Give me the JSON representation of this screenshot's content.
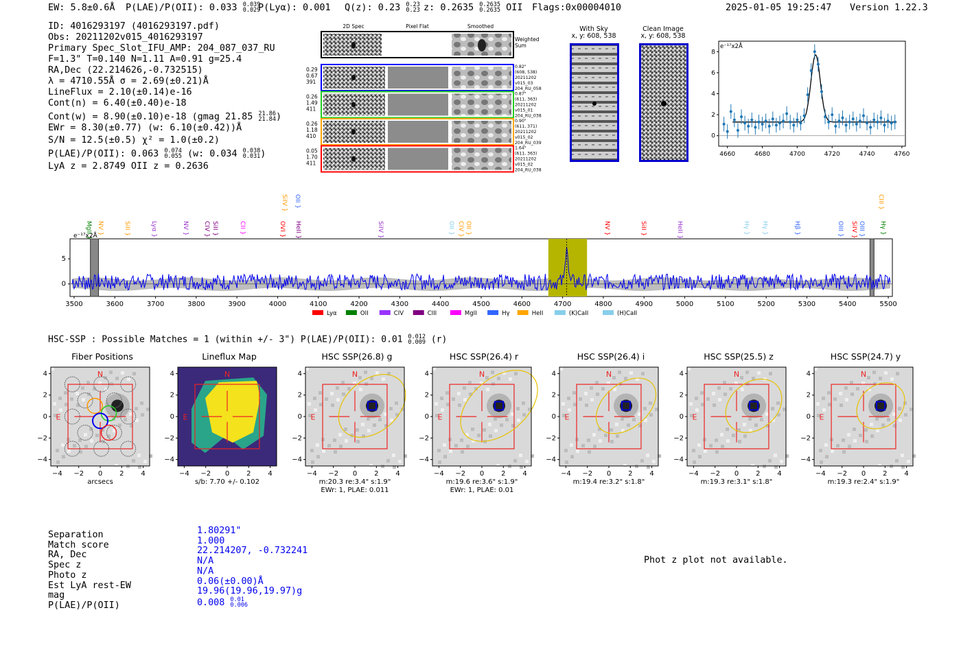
{
  "header": {
    "ew": "EW: 5.8±0.6Å",
    "plae": "P(LAE)/P(OII): 0.033",
    "plae_hi": "0.039",
    "plae_lo": "0.029",
    "plya": "P(Lyα): 0.001",
    "qz": "Q(z): 0.23",
    "qz_hi": "0.23",
    "qz_lo": "0.23",
    "z": "z: 0.2635",
    "z_hi": "0.2635",
    "z_lo": "0.2635",
    "line": "OII",
    "flags": "Flags:0x00004010",
    "datetime": "2025-01-05 19:25:47",
    "version": "Version 1.22.3"
  },
  "info": {
    "id": "ID: 4016293197 (4016293197.pdf)",
    "obs": "Obs: 20211202v015_4016293197",
    "primary": "Primary Spec_Slot_IFU_AMP: 204_087_037_RU",
    "fit": "F=1.3\"  T=0.140  N=1.11  A=0.91  g=25.4",
    "radec": "RA,Dec (22.214626,-0.732515)",
    "lambda": "λ = 4710.55Å   σ = 2.69(±0.21)Å",
    "lineflux": "LineFlux = 2.10(±0.14)e-16",
    "contn": "Cont(n) = 6.40(±0.40)e-18",
    "contw": "Cont(w) = 8.90(±0.10)e-18 (gmag 21.85",
    "contw_hi": "21.86",
    "contw_lo": "21.84",
    "ewr": "EWr = 8.30(±0.77) (w: 6.10(±0.42))Å",
    "sn": "S/N = 12.5(±0.5)  χ² = 1.0(±0.2)",
    "plae": "P(LAE)/P(OII): 0.063",
    "plae_hi": "0.074",
    "plae_lo": "0.055",
    "plae_w": "(w: 0.034",
    "plae_w_hi": "0.038",
    "plae_w_lo": "0.031",
    "lyaz": "LyA z = 2.8749   OII z = 0.2636"
  },
  "cutouts": {
    "col_headers": [
      "2D Spec",
      "Pixel Flat",
      "Smoothed"
    ],
    "weighted_label": "Weighted Sum",
    "rows": [
      {
        "left": [
          "0.29",
          "0.67",
          "391"
        ],
        "right": [
          "0.82\"",
          "(608, 538)",
          "20211202",
          "v015_03",
          "204_RU_058"
        ],
        "color": "#0000ff"
      },
      {
        "left": [
          "0.26",
          "1.49",
          "411"
        ],
        "right": [
          "0.87\"",
          "(611, 363)",
          "20211202",
          "v015_01",
          "204_RU_038"
        ],
        "color": "#22cc22"
      },
      {
        "left": [
          "0.26",
          "1.18",
          "410"
        ],
        "right": [
          "0.90\"",
          "(611, 371)",
          "20211202",
          "v015_02",
          "204_RU_039"
        ],
        "color": "#ffa500"
      },
      {
        "left": [
          "0.05",
          "1.70",
          "411"
        ],
        "right": [
          "1.64\"",
          "(611, 363)",
          "20211202",
          "v015_02",
          "204_RU_038"
        ],
        "color": "#ff0000"
      }
    ]
  },
  "sky": {
    "with_sky_title": "With Sky",
    "with_sky_xy": "x, y: 608, 538",
    "clean_title": "Clean Image",
    "clean_xy": "x, y: 608, 538"
  },
  "zoom_plot": {
    "ylabel": "e⁻¹⁷x2Å",
    "xticks": [
      "4660",
      "4680",
      "4700",
      "4720",
      "4740",
      "4760"
    ],
    "yticks": [
      "0",
      "2",
      "4",
      "6",
      "8"
    ]
  },
  "full_spectrum": {
    "ylabel": "e⁻¹⁷x2Å",
    "xticks": [
      "3500",
      "3600",
      "3700",
      "3800",
      "3900",
      "4000",
      "4100",
      "4200",
      "4300",
      "4400",
      "4500",
      "4600",
      "4700",
      "4800",
      "4900",
      "5000",
      "5100",
      "5200",
      "5300",
      "5400",
      "5500"
    ],
    "yticks": [
      "0",
      "5"
    ],
    "line_labels": [
      {
        "text": "MgII",
        "color": "#008000"
      },
      {
        "text": "NV",
        "color": "#ff9900"
      },
      {
        "text": "SiII",
        "color": "#ff9900"
      },
      {
        "text": "Lyα",
        "color": "#9933cc"
      },
      {
        "text": "NV",
        "color": "#9933cc"
      },
      {
        "text": "CIV",
        "color": "#800080"
      },
      {
        "text": "SiII",
        "color": "#800080"
      },
      {
        "text": "CII",
        "color": "#ff00ff"
      },
      {
        "text": "SiIV",
        "color": "#ff9900"
      },
      {
        "text": "OVI",
        "color": "#ff0000"
      },
      {
        "text": "OII",
        "color": "#3366ff"
      },
      {
        "text": "HeII",
        "color": "#800080"
      },
      {
        "text": "SiIV",
        "color": "#9933cc"
      },
      {
        "text": "OII",
        "color": "#87ceeb"
      },
      {
        "text": "CIV",
        "color": "#ff9900"
      },
      {
        "text": "OII",
        "color": "#ff9900"
      },
      {
        "text": "NV",
        "color": "#ff0000"
      },
      {
        "text": "SiII",
        "color": "#ff0000"
      },
      {
        "text": "HeII",
        "color": "#9933cc"
      },
      {
        "text": "Hγ",
        "color": "#87ceeb"
      },
      {
        "text": "Hγ",
        "color": "#87ceeb"
      },
      {
        "text": "Hβ",
        "color": "#3366ff"
      },
      {
        "text": "OIII",
        "color": "#3366ff"
      },
      {
        "text": "SiIV",
        "color": "#ff0000"
      },
      {
        "text": "OIII",
        "color": "#3366ff"
      },
      {
        "text": "CIII",
        "color": "#ff9900"
      },
      {
        "text": "Hγ",
        "color": "#008000"
      }
    ],
    "legend": [
      {
        "label": "Lyα",
        "color": "#ff0000"
      },
      {
        "label": "OII",
        "color": "#008000"
      },
      {
        "label": "CIV",
        "color": "#9933ff"
      },
      {
        "label": "CIII",
        "color": "#800080"
      },
      {
        "label": "MgII",
        "color": "#ff00ff"
      },
      {
        "label": "Hγ",
        "color": "#3366ff"
      },
      {
        "label": "HeII",
        "color": "#ffa500"
      },
      {
        "label": "(K)CaII",
        "color": "#87ceeb"
      },
      {
        "label": "(H)CaII",
        "color": "#87ceeb"
      }
    ]
  },
  "hsc": {
    "header": "HSC-SSP : Possible Matches = 1 (within +/- 3\")  P(LAE)/P(OII): 0.01",
    "header_hi": "0.012",
    "header_lo": "0.009",
    "header_tail": "(r)",
    "panels": [
      {
        "title": "Fiber Positions",
        "caption1": "arcsecs",
        "caption2": ""
      },
      {
        "title": "Lineflux Map",
        "caption1": "s/b: 7.70 +/- 0.102",
        "caption2": ""
      },
      {
        "title": "HSC SSP(26.8) g",
        "caption1": "m:20.3  re:3.4\"  s:1.9\"",
        "caption2": "EWr: 1, PLAE: 0.011"
      },
      {
        "title": "HSC SSP(26.4) r",
        "caption1": "m:19.6  re:3.6\"  s:1.9\"",
        "caption2": "EWr: 1, PLAE: 0.01"
      },
      {
        "title": "HSC SSP(26.4) i",
        "caption1": "m:19.4  re:3.2\"  s:1.8\"",
        "caption2": ""
      },
      {
        "title": "HSC SSP(25.5) z",
        "caption1": "m:19.3  re:3.1\"  s:1.8\"",
        "caption2": ""
      },
      {
        "title": "HSC SSP(24.7) y",
        "caption1": "m:19.3  re:2.4\"  s:1.9\"",
        "caption2": ""
      }
    ],
    "compass_n": "N",
    "compass_e": "E",
    "axis_ticks": [
      "−4",
      "−2",
      "0",
      "2",
      "4"
    ]
  },
  "match": {
    "labels": [
      "Separation",
      "Match score",
      "RA, Dec",
      "Spec z",
      "Photo z",
      "Est LyA rest-EW",
      "mag",
      "P(LAE)/P(OII)"
    ],
    "values": [
      "1.80291\"",
      "1.000",
      "22.214207, -0.732241",
      "N/A",
      "N/A",
      "0.06(±0.00)Å",
      "19.96(19.96,19.97)g",
      "0.008"
    ],
    "plae_hi": "0.01",
    "plae_lo": "0.006"
  },
  "photz": "Phot z plot not available.",
  "chart_data": [
    {
      "type": "scatter",
      "title": "",
      "xlabel": "",
      "ylabel": "e⁻¹⁷x2Å",
      "xlim": [
        4655,
        4762
      ],
      "ylim": [
        -1,
        9
      ],
      "x": [
        4658,
        4660,
        4662,
        4664,
        4666,
        4668,
        4670,
        4672,
        4674,
        4676,
        4678,
        4680,
        4682,
        4684,
        4686,
        4688,
        4690,
        4692,
        4694,
        4696,
        4698,
        4700,
        4702,
        4704,
        4706,
        4708,
        4710,
        4712,
        4714,
        4716,
        4718,
        4720,
        4722,
        4724,
        4726,
        4728,
        4730,
        4732,
        4734,
        4736,
        4738,
        4740,
        4742,
        4744,
        4746,
        4748,
        4750,
        4752,
        4754,
        4756
      ],
      "values": [
        1.1,
        0.4,
        2.3,
        1.5,
        0.5,
        1.8,
        1.2,
        0.9,
        1.5,
        0.8,
        1.3,
        1.1,
        1.4,
        0.9,
        1.6,
        1.0,
        1.2,
        1.4,
        2.1,
        1.3,
        1.0,
        1.5,
        1.2,
        1.9,
        3.9,
        6.2,
        8.0,
        6.8,
        4.2,
        1.8,
        1.3,
        2.0,
        0.9,
        1.4,
        1.7,
        1.0,
        1.3,
        1.6,
        1.1,
        1.4,
        1.9,
        1.2,
        0.8,
        1.5,
        1.3,
        1.7,
        1.0,
        1.4,
        1.2,
        1.3
      ],
      "model": {
        "continuum": 1.3,
        "peak": 7.7,
        "center": 4710.55,
        "sigma": 2.69
      }
    },
    {
      "type": "line",
      "title": "",
      "ylabel": "e⁻¹⁷x2Å",
      "xlim": [
        3490,
        5510
      ],
      "ylim": [
        -2.5,
        9
      ],
      "highlight_band": [
        4665,
        4760
      ],
      "masked_bands": [
        [
          3540,
          3560
        ],
        [
          5455,
          5465
        ]
      ],
      "peak": {
        "x": 4710,
        "y": 8.2
      }
    }
  ]
}
